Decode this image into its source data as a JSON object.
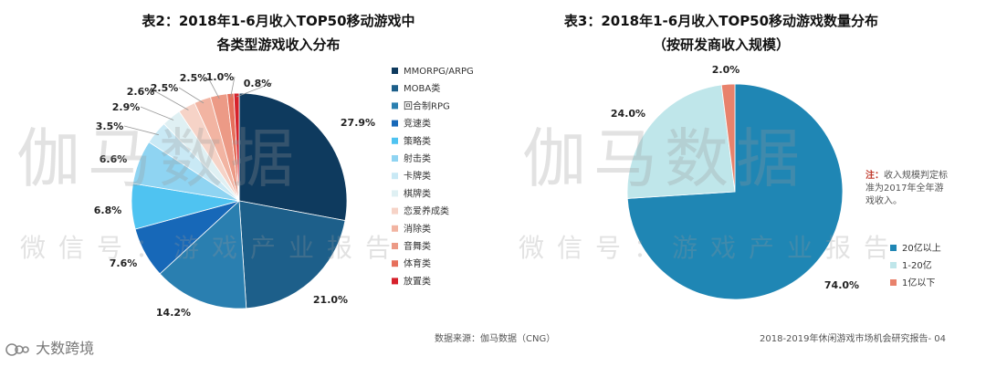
{
  "chart_data": [
    {
      "type": "pie",
      "title_line1": "表2：2018年1-6月收入TOP50移动游戏中",
      "title_line2": "各类型游戏收入分布",
      "slices": [
        {
          "label": "MMORPG/ARPG",
          "value": 27.9,
          "display": "27.9%",
          "color": "#0e3a5e"
        },
        {
          "label": "MOBA类",
          "value": 21.0,
          "display": "21.0%",
          "color": "#1d5f8a"
        },
        {
          "label": "回合制RPG",
          "value": 14.2,
          "display": "14.2%",
          "color": "#2a7fb0"
        },
        {
          "label": "竞速类",
          "value": 7.6,
          "display": "7.6%",
          "color": "#1768b8"
        },
        {
          "label": "策略类",
          "value": 6.8,
          "display": "6.8%",
          "color": "#4fc3f1"
        },
        {
          "label": "射击类",
          "value": 6.6,
          "display": "6.6%",
          "color": "#8fd4f2"
        },
        {
          "label": "卡牌类",
          "value": 3.5,
          "display": "3.5%",
          "color": "#c9e9f5"
        },
        {
          "label": "棋牌类",
          "value": 2.9,
          "display": "2.9%",
          "color": "#dff0f3"
        },
        {
          "label": "恋爱养成类",
          "value": 2.6,
          "display": "2.6%",
          "color": "#f6d3c7"
        },
        {
          "label": "消除类",
          "value": 2.5,
          "display": "2.5%",
          "color": "#f2b4a2"
        },
        {
          "label": "音舞类",
          "value": 2.5,
          "display": "2.5%",
          "color": "#ec9a86"
        },
        {
          "label": "体育类",
          "value": 1.0,
          "display": "1.0%",
          "color": "#e66f5b"
        },
        {
          "label": "放置类",
          "value": 0.8,
          "display": "0.8%",
          "color": "#d6212b"
        }
      ]
    },
    {
      "type": "pie",
      "title_line1": "表3：2018年1-6月收入TOP50移动游戏数量分布",
      "title_line2": "（按研发商收入规模）",
      "slices": [
        {
          "label": "20亿以上",
          "value": 74.0,
          "display": "74.0%",
          "color": "#1f86b4"
        },
        {
          "label": "1-20亿",
          "value": 24.0,
          "display": "24.0%",
          "color": "#bfe6ea"
        },
        {
          "label": "1亿以下",
          "value": 2.0,
          "display": "2.0%",
          "color": "#e8826c"
        }
      ],
      "note_label": "注：",
      "note_text": "收入规模判定标准为2017年全年游戏收入。"
    }
  ],
  "watermark": {
    "big_left": "伽马数据",
    "big_right": "伽马数据",
    "small_left": "微信号：游戏产业报告",
    "small_right": "微信号：游戏产业报告"
  },
  "footer": {
    "source": "数据来源：伽马数据（CNG）",
    "report": "2018-2019年休闲游戏市场机会研究报告- 04"
  },
  "brand": {
    "icon": "dashu-logo-icon",
    "text": "大数跨境"
  }
}
